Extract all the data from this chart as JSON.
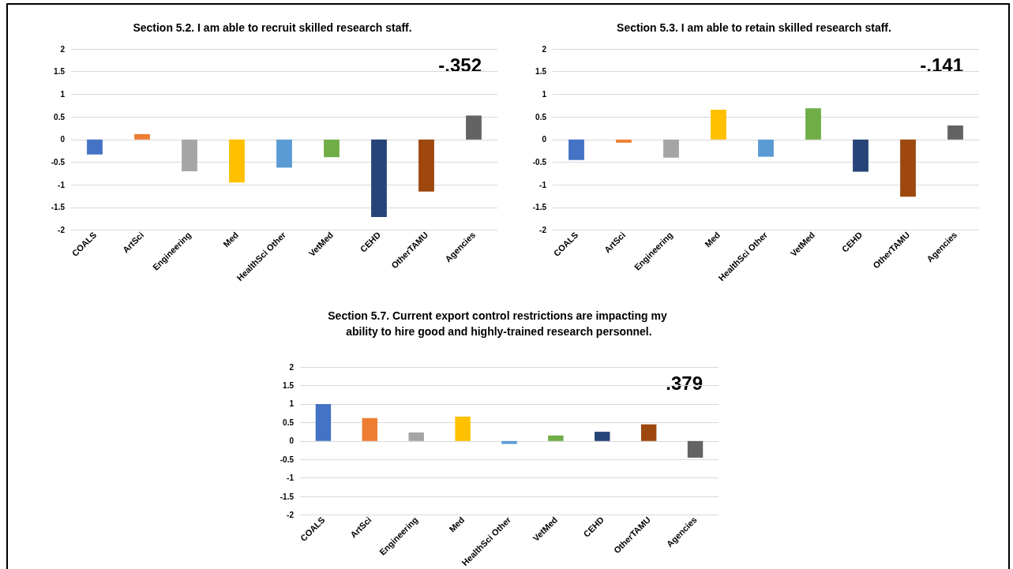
{
  "chart_data": [
    {
      "type": "bar",
      "title": "Section 5.2. I am able to recruit skilled research staff.",
      "categories": [
        "COALS",
        "ArtSci",
        "Engineering",
        "Med",
        "HealthSci Other",
        "VetMed",
        "CEHD",
        "OtherTAMU",
        "Agencies"
      ],
      "values": [
        -0.33,
        0.12,
        -0.7,
        -0.95,
        -0.62,
        -0.39,
        -1.71,
        -1.15,
        0.53
      ],
      "colors": [
        "#4472c4",
        "#ed7d31",
        "#a5a5a5",
        "#ffc000",
        "#5b9bd5",
        "#70ad47",
        "#264478",
        "#9e480e",
        "#636363"
      ],
      "ylim": [
        -2,
        2
      ],
      "yticks": [
        -2,
        -1.5,
        -1,
        -0.5,
        0,
        0.5,
        1,
        1.5,
        2
      ],
      "grid": "y",
      "annotations": [
        "-.352"
      ]
    },
    {
      "type": "bar",
      "title": "Section 5.3. I am able to retain skilled research staff.",
      "categories": [
        "COALS",
        "ArtSci",
        "Engineering",
        "Med",
        "HealthSci Other",
        "VetMed",
        "CEHD",
        "OtherTAMU",
        "Agencies"
      ],
      "values": [
        -0.45,
        -0.07,
        -0.4,
        0.66,
        -0.38,
        0.69,
        -0.71,
        -1.26,
        0.31
      ],
      "colors": [
        "#4472c4",
        "#ed7d31",
        "#a5a5a5",
        "#ffc000",
        "#5b9bd5",
        "#70ad47",
        "#264478",
        "#9e480e",
        "#636363"
      ],
      "ylim": [
        -2,
        2
      ],
      "yticks": [
        -2,
        -1.5,
        -1,
        -0.5,
        0,
        0.5,
        1,
        1.5,
        2
      ],
      "grid": "y",
      "annotations": [
        "-.141"
      ]
    },
    {
      "type": "bar",
      "title": "Section 5.7. Current export control restrictions are impacting my ability to hire good and highly-trained research personnel.",
      "categories": [
        "COALS",
        "ArtSci",
        "Engineering",
        "Med",
        "HealthSci Other",
        "VetMed",
        "CEHD",
        "OtherTAMU",
        "Agencies"
      ],
      "values": [
        1.0,
        0.62,
        0.23,
        0.66,
        -0.08,
        0.15,
        0.25,
        0.45,
        -0.45
      ],
      "colors": [
        "#4472c4",
        "#ed7d31",
        "#a5a5a5",
        "#ffc000",
        "#5b9bd5",
        "#70ad47",
        "#264478",
        "#9e480e",
        "#636363"
      ],
      "ylim": [
        -2,
        2
      ],
      "yticks": [
        -2,
        -1.5,
        -1,
        -0.5,
        0,
        0.5,
        1,
        1.5,
        2
      ],
      "grid": "y",
      "annotations": [
        ".379"
      ]
    }
  ]
}
